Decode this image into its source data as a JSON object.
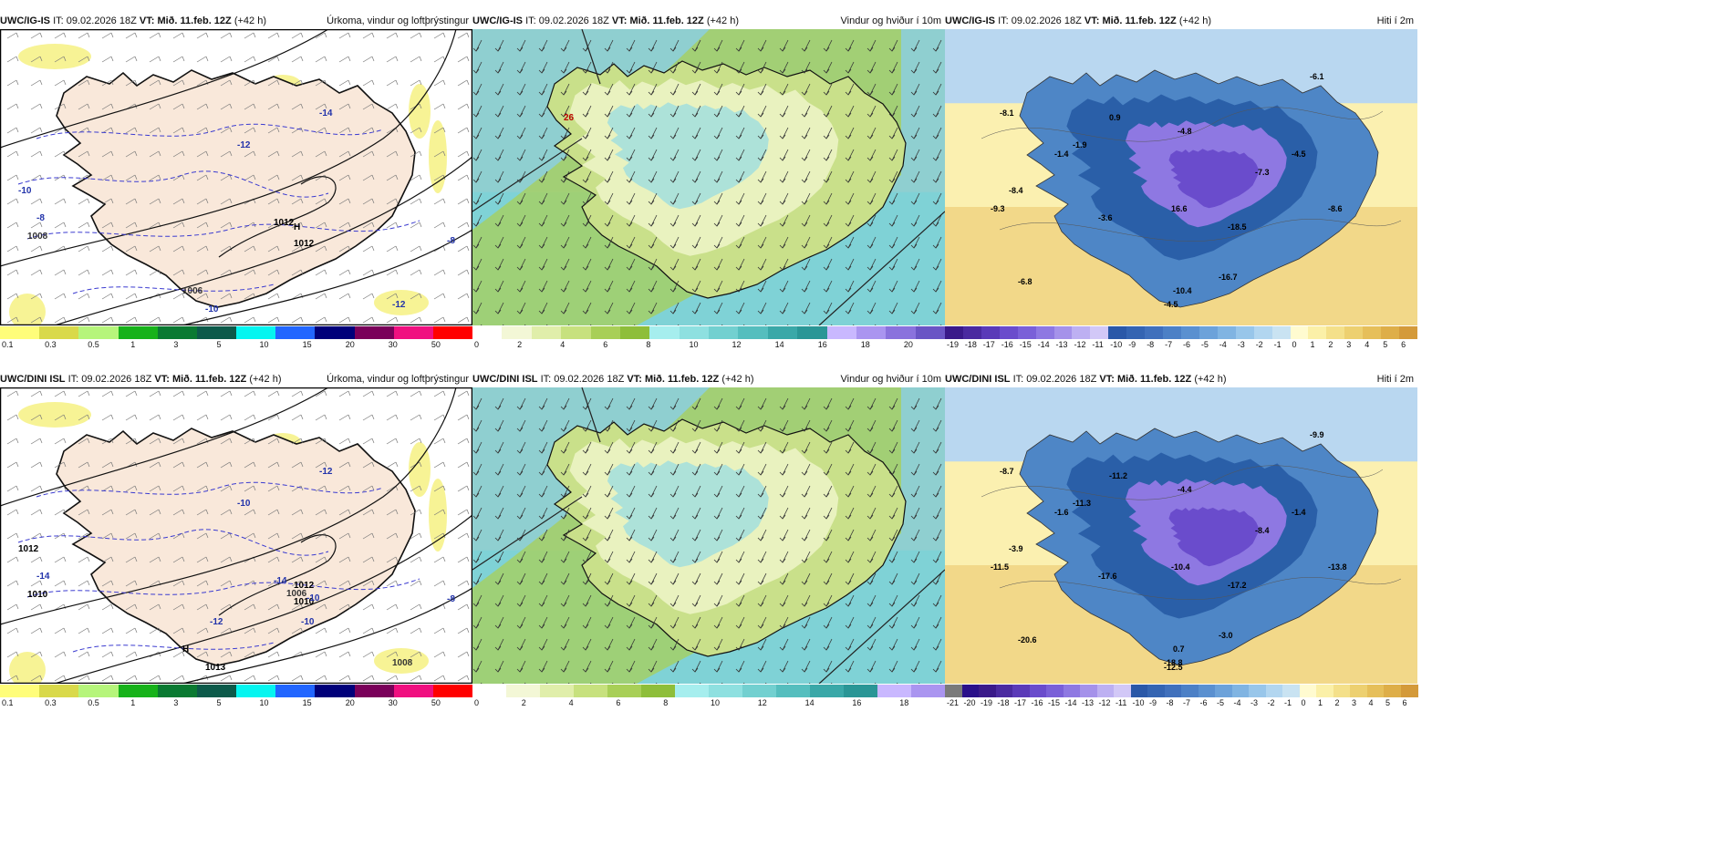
{
  "panels": [
    {
      "model": "UWC/IG-IS",
      "it_label": "IT:",
      "it_value": "09.02.2026 18Z",
      "vt_label": "VT:",
      "vt_value": "Mið. 11.feb. 12Z",
      "lead": "(+42 h)",
      "title": "Úrkoma, vindur og loftþrýstingur",
      "type": "precip",
      "labels": [
        {
          "t": "1012",
          "c": "#000"
        },
        {
          "t": "H",
          "c": "#000"
        },
        {
          "t": "1012",
          "c": "#000"
        },
        {
          "t": "-14",
          "c": "#2233aa"
        },
        {
          "t": "-12",
          "c": "#2233aa"
        },
        {
          "t": "-10",
          "c": "#2233aa"
        },
        {
          "t": "-8",
          "c": "#2233aa"
        },
        {
          "t": "1008",
          "c": "#333"
        },
        {
          "t": "1006",
          "c": "#333"
        },
        {
          "t": "-10",
          "c": "#2233aa"
        },
        {
          "t": "-12",
          "c": "#2233aa"
        },
        {
          "t": "-8",
          "c": "#2233aa"
        }
      ]
    },
    {
      "model": "UWC/IG-IS",
      "it_label": "IT:",
      "it_value": "09.02.2026 18Z",
      "vt_label": "VT:",
      "vt_value": "Mið. 11.feb. 12Z",
      "lead": "(+42 h)",
      "title": "Vindur og hviður í 10m",
      "type": "wind",
      "labels": [
        {
          "t": "26",
          "c": "#b00"
        }
      ]
    },
    {
      "model": "UWC/IG-IS",
      "it_label": "IT:",
      "it_value": "09.02.2026 18Z",
      "vt_label": "VT:",
      "vt_value": "Mið. 11.feb. 12Z",
      "lead": "(+42 h)",
      "title": "Hiti í 2m",
      "type": "temp",
      "labels": [
        {
          "t": "-8.1",
          "c": "#000"
        },
        {
          "t": "0.9",
          "c": "#000"
        },
        {
          "t": "-6.1",
          "c": "#000"
        },
        {
          "t": "-1.9",
          "c": "#000"
        },
        {
          "t": "-4.8",
          "c": "#000"
        },
        {
          "t": "-4.5",
          "c": "#000"
        },
        {
          "t": "-7.3",
          "c": "#000"
        },
        {
          "t": "-8.4",
          "c": "#000"
        },
        {
          "t": "-9.3",
          "c": "#000"
        },
        {
          "t": "-3.6",
          "c": "#000"
        },
        {
          "t": "16.6",
          "c": "#000"
        },
        {
          "t": "-18.5",
          "c": "#000"
        },
        {
          "t": "-8.6",
          "c": "#000"
        },
        {
          "t": "-6.8",
          "c": "#000"
        },
        {
          "t": "-10.4",
          "c": "#000"
        },
        {
          "t": "-16.7",
          "c": "#000"
        },
        {
          "t": "-4.5",
          "c": "#000"
        },
        {
          "t": "-1.4",
          "c": "#000"
        }
      ]
    },
    {
      "model": "UWC/DINI ISL",
      "it_label": "IT:",
      "it_value": "09.02.2026 18Z",
      "vt_label": "VT:",
      "vt_value": "Mið. 11.feb. 12Z",
      "lead": "(+42 h)",
      "title": "Úrkoma, vindur og loftþrýstingur",
      "type": "precip",
      "labels": [
        {
          "t": "-14",
          "c": "#2233aa"
        },
        {
          "t": "1012",
          "c": "#000"
        },
        {
          "t": "1010",
          "c": "#000"
        },
        {
          "t": "-12",
          "c": "#2233aa"
        },
        {
          "t": "-10",
          "c": "#2233aa"
        },
        {
          "t": "1012",
          "c": "#000"
        },
        {
          "t": "-14",
          "c": "#2233aa"
        },
        {
          "t": "1010",
          "c": "#000"
        },
        {
          "t": "H",
          "c": "#000"
        },
        {
          "t": "1013",
          "c": "#000"
        },
        {
          "t": "1008",
          "c": "#333"
        },
        {
          "t": "-8",
          "c": "#2233aa"
        },
        {
          "t": "-10",
          "c": "#2233aa"
        },
        {
          "t": "-12",
          "c": "#2233aa"
        },
        {
          "t": "1006",
          "c": "#333"
        },
        {
          "t": "-10",
          "c": "#2233aa"
        }
      ]
    },
    {
      "model": "UWC/DINI ISL",
      "it_label": "IT:",
      "it_value": "09.02.2026 18Z",
      "vt_label": "VT:",
      "vt_value": "Mið. 11.feb. 12Z",
      "lead": "(+42 h)",
      "title": "Vindur og hviður í 10m",
      "type": "wind",
      "labels": []
    },
    {
      "model": "UWC/DINI ISL",
      "it_label": "IT:",
      "it_value": "09.02.2026 18Z",
      "vt_label": "VT:",
      "vt_value": "Mið. 11.feb. 12Z",
      "lead": "(+42 h)",
      "title": "Hiti í 2m",
      "type": "temp",
      "labels": [
        {
          "t": "-8.7",
          "c": "#000"
        },
        {
          "t": "-11.2",
          "c": "#000"
        },
        {
          "t": "-9.9",
          "c": "#000"
        },
        {
          "t": "-11.3",
          "c": "#000"
        },
        {
          "t": "-4.4",
          "c": "#000"
        },
        {
          "t": "-1.4",
          "c": "#000"
        },
        {
          "t": "-8.4",
          "c": "#000"
        },
        {
          "t": "-3.9",
          "c": "#000"
        },
        {
          "t": "-11.5",
          "c": "#000"
        },
        {
          "t": "-17.6",
          "c": "#000"
        },
        {
          "t": "-10.4",
          "c": "#000"
        },
        {
          "t": "-17.2",
          "c": "#000"
        },
        {
          "t": "-13.8",
          "c": "#000"
        },
        {
          "t": "-20.6",
          "c": "#000"
        },
        {
          "t": "0.7",
          "c": "#000"
        },
        {
          "t": "-3.0",
          "c": "#000"
        },
        {
          "t": "-18.8",
          "c": "#000"
        },
        {
          "t": "-1.6",
          "c": "#000"
        },
        {
          "t": "-12.5",
          "c": "#000"
        }
      ]
    }
  ],
  "colorbars": {
    "precip": {
      "ticks": [
        "0.1",
        "0.3",
        "0.5",
        "1",
        "3",
        "5",
        "10",
        "15",
        "20",
        "30",
        "50"
      ],
      "colors": [
        "#fffd7a",
        "#d9d94a",
        "#b6f57b",
        "#17b21a",
        "#0a7a32",
        "#0c5a4a",
        "#05f5f0",
        "#2266ff",
        "#00007a",
        "#7a005a",
        "#f01080",
        "#ff0000"
      ]
    },
    "wind": {
      "ticks": [
        "0",
        "2",
        "4",
        "6",
        "8",
        "10",
        "12",
        "14",
        "16",
        "18",
        "20"
      ],
      "colors": [
        "#ffffff",
        "#f3f7d6",
        "#e0eeaa",
        "#c7e17e",
        "#a8cf57",
        "#8ebe3a",
        "#a6eeee",
        "#8ee0e0",
        "#72d0d0",
        "#55bebe",
        "#3aa8a8",
        "#2a9696",
        "#c9b8ff",
        "#aa95f0",
        "#8a72dd",
        "#6a55c5"
      ]
    },
    "wind2": {
      "ticks": [
        "0",
        "2",
        "4",
        "6",
        "8",
        "10",
        "12",
        "14",
        "16",
        "18"
      ],
      "colors": [
        "#ffffff",
        "#f3f7d6",
        "#e0eeaa",
        "#c7e17e",
        "#a8cf57",
        "#8ebe3a",
        "#a6eeee",
        "#8ee0e0",
        "#72d0d0",
        "#55bebe",
        "#3aa8a8",
        "#2a9696",
        "#c9b8ff",
        "#aa95f0"
      ]
    },
    "temp": {
      "ticks": [
        "-19",
        "-18",
        "-17",
        "-16",
        "-15",
        "-14",
        "-13",
        "-12",
        "-11",
        "-10",
        "-9",
        "-8",
        "-7",
        "-6",
        "-5",
        "-4",
        "-3",
        "-2",
        "-1",
        "0",
        "1",
        "2",
        "3",
        "4",
        "5",
        "6"
      ],
      "colors": [
        "#3a1a8a",
        "#4a2aa0",
        "#5a3ab8",
        "#6a4ccc",
        "#7a60d8",
        "#8e78e2",
        "#a592ea",
        "#bdb0f2",
        "#d2c8f7",
        "#2a58a8",
        "#3464b2",
        "#4070bc",
        "#4c80c6",
        "#5a90d0",
        "#6ca2da",
        "#80b4e2",
        "#98c6ea",
        "#b2d6f0",
        "#c9e3f2",
        "#fffbd0",
        "#fbf0a8",
        "#f4e08a",
        "#edd070",
        "#e6bf5a",
        "#deae48",
        "#d49a3a"
      ]
    },
    "temp2": {
      "ticks": [
        "-21",
        "-20",
        "-19",
        "-18",
        "-17",
        "-16",
        "-15",
        "-14",
        "-13",
        "-12",
        "-11",
        "-10",
        "-9",
        "-8",
        "-7",
        "-6",
        "-5",
        "-4",
        "-3",
        "-2",
        "-1",
        "0",
        "1",
        "2",
        "3",
        "4",
        "5",
        "6"
      ],
      "colors": [
        "#7a7a7a",
        "#2a108a",
        "#3a1a8a",
        "#4a2aa0",
        "#5a3ab8",
        "#6a4ccc",
        "#7a60d8",
        "#8e78e2",
        "#a592ea",
        "#bdb0f2",
        "#d2c8f7",
        "#2a58a8",
        "#3464b2",
        "#4070bc",
        "#4c80c6",
        "#5a90d0",
        "#6ca2da",
        "#80b4e2",
        "#98c6ea",
        "#b2d6f0",
        "#c9e3f2",
        "#fffbd0",
        "#fbf0a8",
        "#f4e08a",
        "#edd070",
        "#e6bf5a",
        "#deae48",
        "#d49a3a"
      ]
    }
  }
}
